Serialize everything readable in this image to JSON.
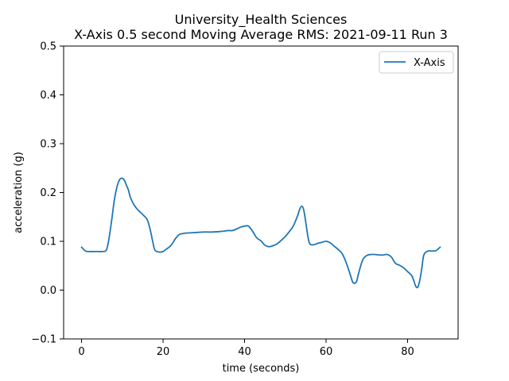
{
  "chart_data": {
    "type": "line",
    "title": "University_Health Sciences",
    "subtitle": "X-Axis 0.5 second Moving Average RMS: 2021-09-11 Run 3",
    "xlabel": "time (seconds)",
    "ylabel": "acceleration (g)",
    "xlim": [
      -4.4,
      92.4
    ],
    "ylim": [
      -0.1,
      0.5
    ],
    "xticks": [
      0,
      20,
      40,
      60,
      80
    ],
    "yticks": [
      -0.1,
      0.0,
      0.1,
      0.2,
      0.3,
      0.4,
      0.5
    ],
    "ytick_labels": [
      "−0.1",
      "0.0",
      "0.1",
      "0.2",
      "0.3",
      "0.4",
      "0.5"
    ],
    "grid": false,
    "legend_position": "top-right",
    "series": [
      {
        "name": "X-Axis",
        "color": "#1f77b4",
        "x": [
          0,
          1,
          2,
          3,
          4,
          5,
          6,
          6.5,
          7,
          7.5,
          8,
          8.5,
          9,
          9.5,
          10,
          10.5,
          11,
          11.5,
          12,
          13,
          14,
          15,
          16,
          16.5,
          17,
          17.5,
          18,
          19,
          20,
          20.5,
          21,
          22,
          23,
          24,
          25,
          26,
          28,
          30,
          32,
          34,
          35,
          36,
          37,
          38,
          39,
          40,
          41,
          42,
          43,
          44,
          45,
          46,
          47,
          48,
          49,
          50,
          51,
          52,
          53,
          53.5,
          54,
          54.5,
          55,
          55.5,
          56,
          57,
          58,
          59,
          60,
          61,
          62,
          63,
          64,
          65,
          66,
          66.5,
          67,
          67.5,
          68,
          69,
          70,
          71,
          72,
          73,
          74,
          75,
          76,
          77,
          78,
          79,
          80,
          81,
          81.5,
          82,
          82.5,
          83,
          83.5,
          84,
          85,
          86,
          87,
          88
        ],
        "values": [
          0.088,
          0.08,
          0.079,
          0.079,
          0.079,
          0.079,
          0.081,
          0.095,
          0.12,
          0.15,
          0.182,
          0.205,
          0.22,
          0.228,
          0.229,
          0.225,
          0.215,
          0.205,
          0.19,
          0.173,
          0.163,
          0.155,
          0.146,
          0.135,
          0.118,
          0.098,
          0.082,
          0.078,
          0.079,
          0.082,
          0.085,
          0.092,
          0.105,
          0.114,
          0.116,
          0.117,
          0.118,
          0.119,
          0.119,
          0.12,
          0.121,
          0.122,
          0.122,
          0.125,
          0.129,
          0.131,
          0.131,
          0.12,
          0.107,
          0.101,
          0.092,
          0.089,
          0.091,
          0.095,
          0.102,
          0.11,
          0.12,
          0.132,
          0.152,
          0.165,
          0.172,
          0.165,
          0.14,
          0.112,
          0.095,
          0.093,
          0.096,
          0.098,
          0.1,
          0.097,
          0.09,
          0.083,
          0.074,
          0.055,
          0.03,
          0.017,
          0.014,
          0.018,
          0.035,
          0.062,
          0.071,
          0.073,
          0.073,
          0.072,
          0.072,
          0.073,
          0.068,
          0.055,
          0.051,
          0.046,
          0.038,
          0.03,
          0.02,
          0.008,
          0.006,
          0.02,
          0.045,
          0.072,
          0.08,
          0.08,
          0.081,
          0.088
        ]
      }
    ]
  }
}
